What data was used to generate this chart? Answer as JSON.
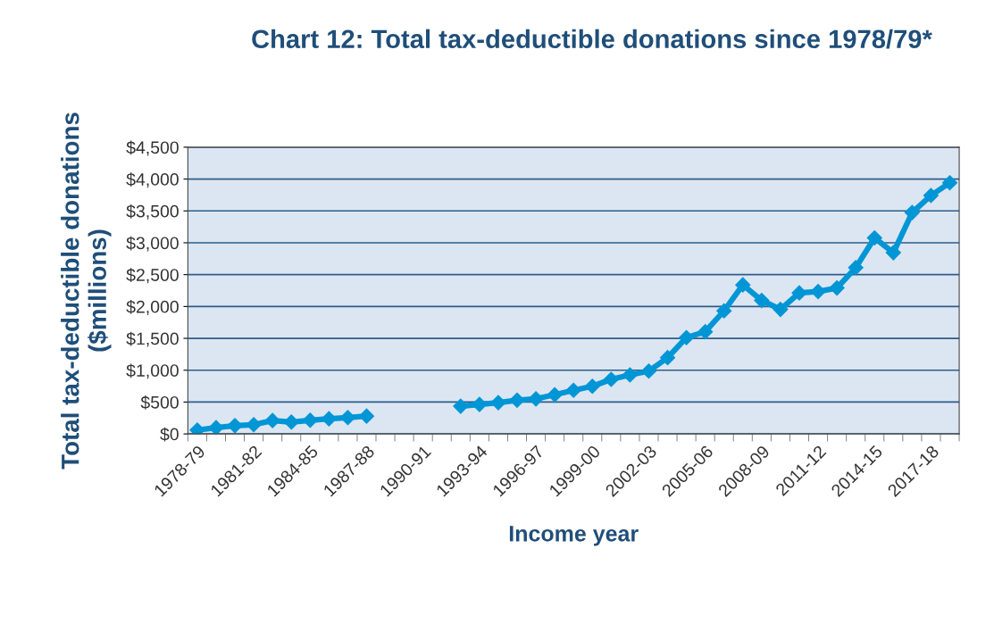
{
  "chart_data": {
    "type": "line",
    "title": "Chart 12: Total tax-deductible donations since 1978/79*",
    "ylabel": "Total tax-deductible donations\n($millions)",
    "xlabel": "Income year",
    "categories": [
      "1978-79",
      null,
      null,
      "1981-82",
      null,
      null,
      "1984-85",
      null,
      null,
      "1987-88",
      null,
      null,
      "1990-91",
      null,
      null,
      "1993-94",
      null,
      null,
      "1996-97",
      null,
      null,
      "1999-00",
      null,
      null,
      "2002-03",
      null,
      null,
      "2005-06",
      null,
      null,
      "2008-09",
      null,
      null,
      "2011-12",
      null,
      null,
      "2014-15",
      null,
      null,
      "2017-18",
      null
    ],
    "series": [
      {
        "color": "#0096d6",
        "values": [
          60,
          98,
          130,
          145,
          210,
          187,
          215,
          238,
          257,
          280,
          null,
          null,
          null,
          null,
          435,
          463,
          491,
          529,
          551,
          615,
          685,
          748,
          856,
          926,
          986,
          1197,
          1511,
          1604,
          1932,
          2339,
          2095,
          1955,
          2213,
          2235,
          2291,
          2610,
          3077,
          2844,
          3475,
          3742,
          3942
        ]
      }
    ],
    "ylim": [
      0,
      4500
    ],
    "yticks": [
      {
        "value": 0,
        "label": "$0"
      },
      {
        "value": 500,
        "label": "$500"
      },
      {
        "value": 1000,
        "label": "$1,000"
      },
      {
        "value": 1500,
        "label": "$1,500"
      },
      {
        "value": 2000,
        "label": "$2,000"
      },
      {
        "value": 2500,
        "label": "$2,500"
      },
      {
        "value": 3000,
        "label": "$3,000"
      },
      {
        "value": 3500,
        "label": "$3,500"
      },
      {
        "value": 4000,
        "label": "$4,000"
      },
      {
        "value": 4500,
        "label": "$4,500"
      }
    ],
    "grid": "y",
    "marker": "diamond",
    "line_style": "solid"
  }
}
